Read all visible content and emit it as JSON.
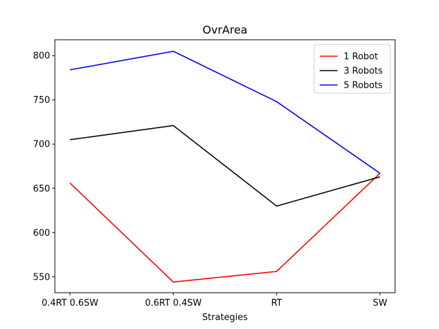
{
  "chart_data": {
    "type": "line",
    "title": "OvrArea",
    "xlabel": "Strategies",
    "ylabel": "",
    "categories": [
      "0.4RT 0.6SW",
      "0.6RT 0.4SW",
      "RT",
      "SW"
    ],
    "ylim": [
      532,
      818
    ],
    "yticks": [
      550,
      600,
      650,
      700,
      750,
      800
    ],
    "grid": false,
    "legend_position": "top-right",
    "series": [
      {
        "name": "1 Robot",
        "color": "#ff0000",
        "values": [
          656,
          544,
          556,
          667
        ]
      },
      {
        "name": "3 Robots",
        "color": "#000000",
        "values": [
          705,
          721,
          630,
          663
        ]
      },
      {
        "name": "5 Robots",
        "color": "#0000ff",
        "values": [
          784,
          805,
          748,
          667
        ]
      }
    ]
  }
}
